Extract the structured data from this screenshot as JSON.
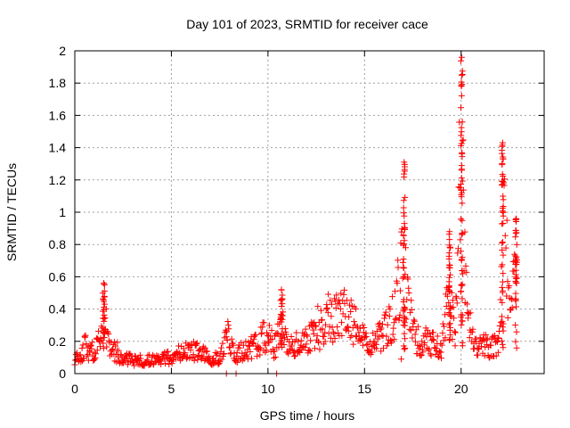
{
  "chart_data": {
    "type": "scatter",
    "title": "Day 101 of 2023, SRMTID for receiver cace",
    "xlabel": "GPS time / hours",
    "ylabel": "SRMTID / TECUs",
    "xlim": [
      0,
      24.3
    ],
    "ylim": [
      0,
      2
    ],
    "grid": true,
    "marker": "+",
    "series_color": "#ff0000",
    "x_ticks": [
      0,
      5,
      10,
      15,
      20
    ],
    "y_ticks": [
      0,
      0.2,
      0.4,
      0.6,
      0.8,
      1,
      1.2,
      1.4,
      1.6,
      1.8,
      2
    ],
    "x_tick_labels": [
      "0",
      "5",
      "10",
      "15",
      "20"
    ],
    "y_tick_labels": [
      "0",
      "0.2",
      "0.4",
      "0.6",
      "0.8",
      "1",
      "1.2",
      "1.4",
      "1.6",
      "1.8",
      "2"
    ],
    "profile": [
      [
        0.0,
        0.1
      ],
      [
        0.3,
        0.08
      ],
      [
        0.5,
        0.18
      ],
      [
        0.8,
        0.12
      ],
      [
        1.0,
        0.15
      ],
      [
        1.3,
        0.22
      ],
      [
        1.5,
        0.45
      ],
      [
        1.7,
        0.2
      ],
      [
        2.0,
        0.14
      ],
      [
        2.3,
        0.1
      ],
      [
        3.0,
        0.08
      ],
      [
        4.0,
        0.08
      ],
      [
        5.0,
        0.1
      ],
      [
        5.5,
        0.13
      ],
      [
        6.0,
        0.15
      ],
      [
        7.0,
        0.1
      ],
      [
        7.5,
        0.1
      ],
      [
        7.9,
        0.25
      ],
      [
        8.3,
        0.12
      ],
      [
        9.0,
        0.15
      ],
      [
        9.5,
        0.2
      ],
      [
        10.0,
        0.25
      ],
      [
        10.3,
        0.15
      ],
      [
        10.7,
        0.3
      ],
      [
        11.0,
        0.18
      ],
      [
        12.0,
        0.2
      ],
      [
        12.5,
        0.25
      ],
      [
        13.0,
        0.3
      ],
      [
        13.5,
        0.35
      ],
      [
        14.0,
        0.4
      ],
      [
        14.5,
        0.3
      ],
      [
        15.0,
        0.2
      ],
      [
        15.5,
        0.2
      ],
      [
        16.0,
        0.25
      ],
      [
        16.5,
        0.35
      ],
      [
        17.0,
        0.7
      ],
      [
        17.3,
        0.4
      ],
      [
        17.7,
        0.2
      ],
      [
        18.5,
        0.2
      ],
      [
        19.0,
        0.15
      ],
      [
        19.4,
        0.55
      ],
      [
        19.7,
        0.2
      ],
      [
        20.0,
        1.5
      ],
      [
        20.2,
        0.6
      ],
      [
        20.4,
        0.3
      ],
      [
        20.7,
        0.18
      ],
      [
        21.5,
        0.17
      ],
      [
        22.0,
        0.2
      ],
      [
        22.2,
        1.0
      ],
      [
        22.5,
        0.4
      ],
      [
        22.8,
        0.75
      ],
      [
        22.9,
        0.17
      ]
    ],
    "peaks": [
      {
        "x": 1.5,
        "y": 0.56
      },
      {
        "x": 10.7,
        "y": 0.52
      },
      {
        "x": 17.05,
        "y": 1.31
      },
      {
        "x": 19.4,
        "y": 0.88
      },
      {
        "x": 20.03,
        "y": 1.96
      },
      {
        "x": 22.15,
        "y": 1.43
      },
      {
        "x": 22.85,
        "y": 0.96
      }
    ],
    "outliers": [
      {
        "x": 7.85,
        "y": 0.0
      },
      {
        "x": 8.35,
        "y": 0.0
      },
      {
        "x": 10.45,
        "y": 0.0
      },
      {
        "x": 16.9,
        "y": 0.09
      }
    ],
    "seed": 101
  }
}
